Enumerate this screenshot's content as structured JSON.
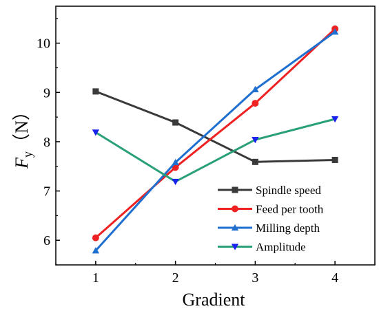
{
  "chart_data": {
    "type": "line",
    "xlabel": "Gradient",
    "ylabel_main": "F",
    "ylabel_sub": "y",
    "ylabel_unit": "（N）",
    "x": [
      1,
      2,
      3,
      4
    ],
    "xticks": [
      "1",
      "2",
      "3",
      "4"
    ],
    "yticks": [
      "6",
      "7",
      "8",
      "9",
      "10"
    ],
    "xlim": [
      0.5,
      4.5
    ],
    "ylim": [
      5.5,
      10.75
    ],
    "grid": false,
    "legend_position": "bottom-right",
    "series": [
      {
        "name": "Spindle speed",
        "values": [
          9.02,
          8.39,
          7.59,
          7.63
        ],
        "color": "#3a3a3a",
        "marker": "square"
      },
      {
        "name": "Feed per tooth",
        "values": [
          6.05,
          7.48,
          8.78,
          10.29
        ],
        "color": "#ee2222",
        "marker": "circle"
      },
      {
        "name": "Milling depth",
        "values": [
          5.79,
          7.58,
          9.06,
          10.23
        ],
        "color": "#1f6fd0",
        "marker": "triangle-up"
      },
      {
        "name": "Amplitude",
        "values": [
          8.19,
          7.19,
          8.04,
          8.46
        ],
        "color": "#2aa07a",
        "marker": "triangle-down",
        "marker_color": "#1a22ee"
      }
    ]
  }
}
